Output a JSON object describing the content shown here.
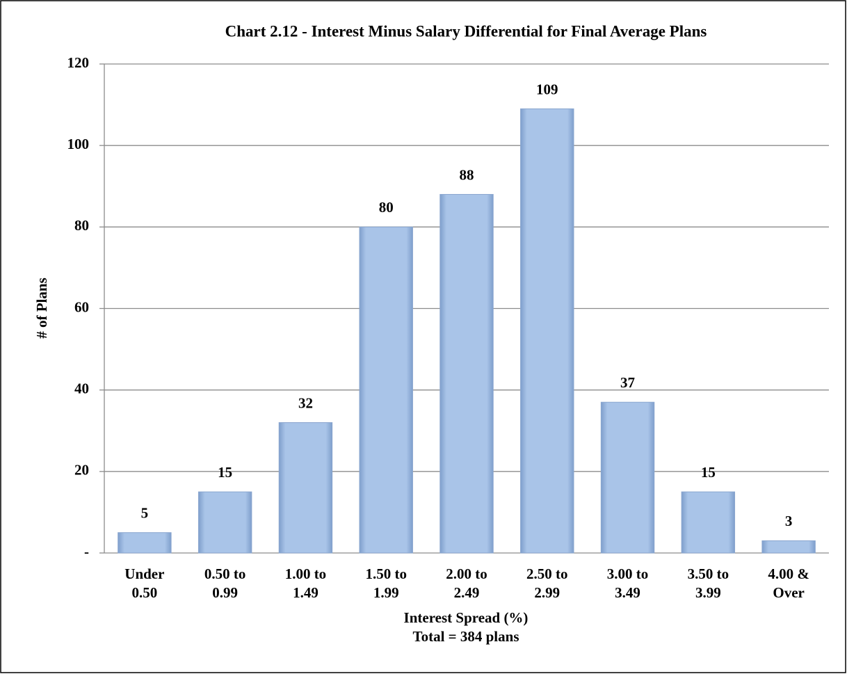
{
  "chart_data": {
    "type": "bar",
    "title": "Chart 2.12 - Interest Minus Salary Differential for Final Average Plans",
    "xlabel": "Interest Spread (%)",
    "annotation": "Total = 384 plans",
    "ylabel": "# of Plans",
    "categories": [
      "Under 0.50",
      "0.50 to 0.99",
      "1.00 to 1.49",
      "1.50 to 1.99",
      "2.00 to 2.49",
      "2.50 to 2.99",
      "3.00 to 3.49",
      "3.50 to 3.99",
      "4.00 & Over"
    ],
    "values": [
      5,
      15,
      32,
      80,
      88,
      109,
      37,
      15,
      3
    ],
    "color": "#9dbbe3",
    "ylim": [
      0,
      120
    ],
    "yticks": [
      {
        "value": 0,
        "label": "-"
      },
      20,
      40,
      60,
      80,
      100,
      120
    ],
    "grid": true
  }
}
